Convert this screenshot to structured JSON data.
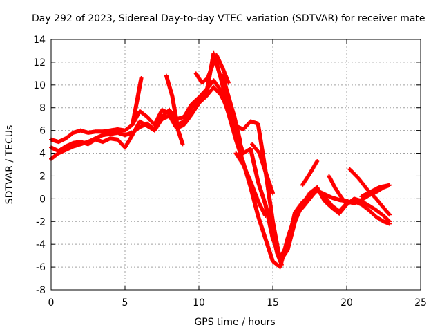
{
  "chart_data": {
    "type": "scatter",
    "title": "Day 292 of 2023, Sidereal Day-to-day VTEC variation (SDTVAR) for receiver mate",
    "xlabel": "GPS time / hours",
    "ylabel": "SDTVAR / TECUs",
    "xlim": [
      0,
      25
    ],
    "ylim": [
      -8,
      14
    ],
    "x_ticks": [
      0,
      5,
      10,
      15,
      20,
      25
    ],
    "y_ticks": [
      -8,
      -6,
      -4,
      -2,
      0,
      2,
      4,
      6,
      8,
      10,
      12,
      14
    ],
    "grid": true,
    "marker": "plus",
    "color": "#ff0000",
    "series": [
      {
        "x": [
          0.0,
          0.5,
          1.0,
          1.5,
          2.0,
          2.5,
          3.0,
          3.5,
          4.0,
          4.5,
          5.0,
          5.5,
          6.0,
          6.5,
          7.0,
          7.5,
          8.0,
          8.5,
          9.0,
          9.5,
          10.0,
          10.5,
          11.0,
          11.5,
          12.0,
          12.5,
          13.0,
          13.5,
          14.0,
          14.5,
          15.0,
          15.5,
          16.0,
          16.5,
          17.0,
          17.5,
          18.0,
          18.5,
          19.0,
          19.5,
          20.0,
          20.5,
          21.0,
          21.5,
          22.0,
          22.5,
          22.9
        ],
        "y": [
          3.5,
          4.0,
          4.3,
          4.6,
          4.8,
          5.0,
          5.3,
          5.6,
          5.7,
          5.8,
          5.6,
          5.8,
          6.3,
          6.6,
          6.1,
          7.2,
          7.8,
          7.0,
          7.2,
          8.3,
          8.9,
          9.6,
          10.4,
          9.5,
          7.5,
          5.2,
          3.2,
          1.0,
          -1.5,
          -3.5,
          -5.5,
          -6.0,
          -3.5,
          -1.5,
          -0.8,
          0.0,
          0.8,
          0.2,
          -0.6,
          -1.1,
          -0.4,
          -0.2,
          -0.5,
          -1.0,
          -1.6,
          -2.0,
          -2.2
        ]
      },
      {
        "x": [
          0.0,
          0.5,
          1.0,
          1.5,
          2.0,
          2.5,
          3.0,
          3.5,
          4.0,
          4.5,
          5.0,
          5.5,
          6.0,
          6.5,
          7.0,
          7.5,
          8.0,
          8.5,
          9.0,
          9.5,
          10.0,
          10.5,
          11.0,
          11.5,
          12.0,
          12.5,
          13.0,
          13.5,
          14.0,
          14.5,
          15.0,
          15.5,
          16.0,
          16.5,
          17.0,
          17.5,
          18.0,
          18.5,
          19.0,
          19.5,
          20.0,
          20.5,
          21.0,
          21.5,
          22.0,
          22.5,
          22.9
        ],
        "y": [
          5.2,
          5.0,
          5.3,
          5.8,
          6.0,
          5.8,
          5.9,
          5.9,
          6.0,
          6.1,
          6.0,
          6.5,
          7.7,
          7.2,
          6.5,
          7.8,
          7.5,
          6.5,
          6.8,
          8.0,
          8.6,
          9.2,
          12.8,
          10.5,
          8.0,
          6.4,
          6.1,
          6.8,
          6.6,
          2.5,
          -2.0,
          -5.5,
          -4.5,
          -2.0,
          -0.5,
          0.5,
          1.0,
          -0.2,
          -0.8,
          -1.3,
          -0.5,
          0.0,
          -0.2,
          -0.6,
          -1.0,
          -1.5,
          -2.0
        ]
      },
      {
        "x": [
          0.0,
          0.5,
          1.0,
          1.5,
          2.0,
          2.5,
          3.0,
          3.5,
          4.0,
          4.5,
          5.0,
          5.5,
          6.0,
          6.5,
          7.0,
          7.5,
          8.0,
          8.5,
          9.0,
          9.5,
          10.0,
          10.5,
          11.0,
          11.5,
          12.0,
          12.5,
          13.0,
          13.5,
          14.0,
          14.5,
          15.0,
          15.5,
          16.0,
          16.5,
          17.0,
          17.5,
          18.0,
          18.5,
          19.0,
          19.5,
          20.0,
          20.5,
          21.0,
          21.5,
          22.0,
          22.5,
          22.9
        ],
        "y": [
          4.5,
          4.2,
          4.6,
          4.9,
          5.0,
          4.8,
          5.2,
          5.0,
          5.3,
          5.2,
          4.5,
          5.6,
          6.8,
          6.4,
          6.0,
          7.0,
          7.3,
          6.2,
          6.5,
          7.4,
          8.4,
          9.0,
          9.8,
          9.1,
          7.8,
          6.0,
          4.0,
          4.4,
          1.5,
          -0.5,
          -3.5,
          -5.2,
          -4.0,
          -1.2,
          -0.3,
          0.3,
          0.7,
          0.4,
          0.1,
          -0.1,
          -0.2,
          -0.4,
          -0.1,
          0.3,
          0.6,
          1.0,
          1.2
        ]
      }
    ],
    "extra_segments": [
      {
        "x": [
          5.5,
          5.8,
          6.1
        ],
        "y": [
          6.5,
          8.5,
          10.6
        ]
      },
      {
        "x": [
          7.8,
          8.2,
          8.6,
          8.9
        ],
        "y": [
          10.8,
          9.0,
          6.0,
          4.8
        ]
      },
      {
        "x": [
          9.8,
          10.2,
          10.6,
          11.0
        ],
        "y": [
          11.0,
          10.2,
          10.6,
          12.0
        ]
      },
      {
        "x": [
          11.2,
          11.6,
          12.0
        ],
        "y": [
          12.6,
          11.5,
          10.2
        ]
      },
      {
        "x": [
          12.5,
          13.0,
          13.5,
          14.0,
          14.5
        ],
        "y": [
          4.0,
          3.0,
          1.5,
          -0.2,
          -1.5
        ]
      },
      {
        "x": [
          13.6,
          14.1,
          14.6,
          15.0
        ],
        "y": [
          4.8,
          4.0,
          2.0,
          0.5
        ]
      },
      {
        "x": [
          17.0,
          17.5,
          18.0
        ],
        "y": [
          1.2,
          2.2,
          3.3
        ]
      },
      {
        "x": [
          18.8,
          19.2,
          19.6,
          20.0
        ],
        "y": [
          2.0,
          1.0,
          0.2,
          -0.5
        ]
      },
      {
        "x": [
          20.2,
          20.8,
          21.4,
          22.0,
          22.5,
          22.9
        ],
        "y": [
          2.6,
          1.8,
          0.8,
          0.0,
          -0.8,
          -1.4
        ]
      },
      {
        "x": [
          21.0,
          21.6,
          22.2,
          22.9
        ],
        "y": [
          0.2,
          0.6,
          1.0,
          1.2
        ]
      },
      {
        "x": [
          11.6,
          12.0,
          12.4,
          12.8
        ],
        "y": [
          10.8,
          9.0,
          7.2,
          5.0
        ]
      },
      {
        "x": [
          14.5,
          14.9,
          15.3,
          15.6
        ],
        "y": [
          -0.5,
          -2.5,
          -4.8,
          -5.8
        ]
      }
    ]
  }
}
